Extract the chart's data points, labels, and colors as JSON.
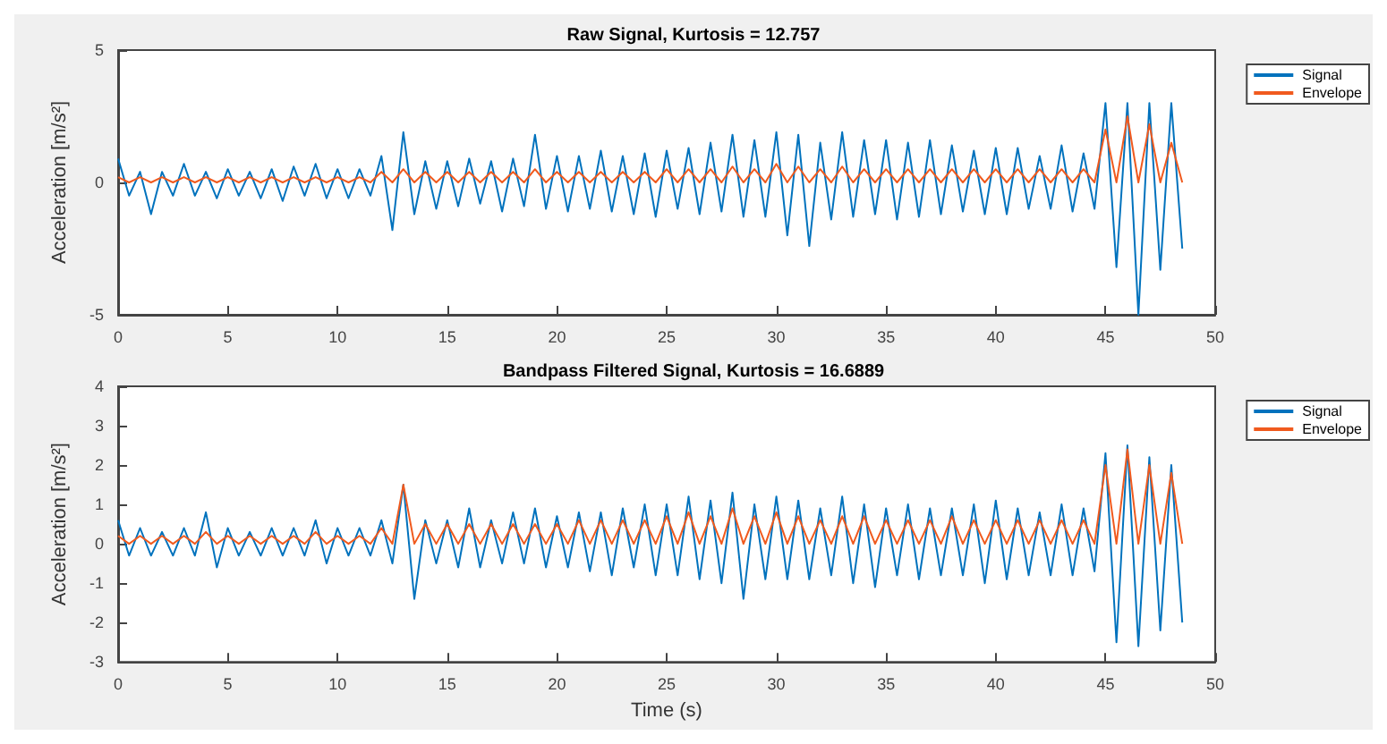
{
  "chart_data": [
    {
      "type": "line",
      "title": "Raw Signal, Kurtosis = 12.757",
      "ylabel": "Acceleration [m/s²]",
      "xlim": [
        0,
        50
      ],
      "xticks": [
        0,
        5,
        10,
        15,
        20,
        25,
        30,
        35,
        40,
        45,
        50
      ],
      "ylim": [
        -5,
        5
      ],
      "yticks": [
        -5,
        0,
        5
      ],
      "grid": false,
      "legend": "top right",
      "x": [
        0,
        0.5,
        1,
        1.5,
        2,
        2.5,
        3,
        3.5,
        4,
        4.5,
        5,
        5.5,
        6,
        6.5,
        7,
        7.5,
        8,
        8.5,
        9,
        9.5,
        10,
        10.5,
        11,
        11.5,
        12,
        12.5,
        13,
        13.5,
        14,
        14.5,
        15,
        15.5,
        16,
        16.5,
        17,
        17.5,
        18,
        18.5,
        19,
        19.5,
        20,
        20.5,
        21,
        21.5,
        22,
        22.5,
        23,
        23.5,
        24,
        24.5,
        25,
        25.5,
        26,
        26.5,
        27,
        27.5,
        28,
        28.5,
        29,
        29.5,
        30,
        30.5,
        31,
        31.5,
        32,
        32.5,
        33,
        33.5,
        34,
        34.5,
        35,
        35.5,
        36,
        36.5,
        37,
        37.5,
        38,
        38.5,
        39,
        39.5,
        40,
        40.5,
        41,
        41.5,
        42,
        42.5,
        43,
        43.5,
        44,
        44.5,
        45,
        45.5,
        46,
        46.5,
        47,
        47.5,
        48,
        48.5
      ],
      "series": [
        {
          "name": "Signal",
          "color": "#0072bd",
          "values": [
            0.9,
            -0.5,
            0.4,
            -1.2,
            0.4,
            -0.5,
            0.7,
            -0.5,
            0.4,
            -0.6,
            0.5,
            -0.5,
            0.4,
            -0.6,
            0.5,
            -0.7,
            0.6,
            -0.5,
            0.7,
            -0.6,
            0.5,
            -0.6,
            0.5,
            -0.5,
            1.0,
            -1.8,
            1.9,
            -1.2,
            0.8,
            -1.0,
            0.8,
            -0.9,
            0.9,
            -0.8,
            0.8,
            -1.1,
            0.9,
            -0.9,
            1.8,
            -1.0,
            1.0,
            -1.1,
            1.0,
            -1.0,
            1.2,
            -1.1,
            1.0,
            -1.2,
            1.1,
            -1.3,
            1.2,
            -1.0,
            1.3,
            -1.2,
            1.5,
            -1.1,
            1.8,
            -1.3,
            1.6,
            -1.3,
            1.9,
            -2.0,
            1.8,
            -2.4,
            1.5,
            -1.4,
            1.9,
            -1.3,
            1.6,
            -1.2,
            1.6,
            -1.4,
            1.5,
            -1.3,
            1.6,
            -1.2,
            1.4,
            -1.1,
            1.2,
            -1.2,
            1.3,
            -1.2,
            1.3,
            -1.0,
            1.0,
            -1.0,
            1.4,
            -1.1,
            1.1,
            -1.0,
            3.0,
            -3.2,
            3.0,
            -5.0,
            3.0,
            -3.3,
            3.0,
            -2.5
          ]
        },
        {
          "name": "Envelope",
          "color": "#f05a1e",
          "values": [
            0.2,
            0,
            0.2,
            0,
            0.2,
            0,
            0.2,
            0,
            0.2,
            0,
            0.2,
            0,
            0.2,
            0,
            0.2,
            0,
            0.2,
            0,
            0.2,
            0,
            0.2,
            0,
            0.2,
            0,
            0.4,
            0,
            0.5,
            0,
            0.4,
            0,
            0.4,
            0,
            0.4,
            0,
            0.4,
            0,
            0.4,
            0,
            0.5,
            0,
            0.4,
            0,
            0.4,
            0,
            0.4,
            0,
            0.4,
            0,
            0.4,
            0,
            0.5,
            0,
            0.5,
            0,
            0.5,
            0,
            0.6,
            0,
            0.5,
            0,
            0.7,
            0,
            0.6,
            0,
            0.5,
            0,
            0.6,
            0,
            0.5,
            0,
            0.5,
            0,
            0.5,
            0,
            0.5,
            0,
            0.5,
            0,
            0.5,
            0,
            0.5,
            0,
            0.5,
            0,
            0.5,
            0,
            0.5,
            0,
            0.5,
            0,
            2.0,
            0,
            2.5,
            0,
            2.2,
            0,
            1.5,
            0
          ]
        }
      ]
    },
    {
      "type": "line",
      "title": "Bandpass Filtered Signal, Kurtosis = 16.6889",
      "xlabel": "Time (s)",
      "ylabel": "Acceleration [m/s²]",
      "xlim": [
        0,
        50
      ],
      "xticks": [
        0,
        5,
        10,
        15,
        20,
        25,
        30,
        35,
        40,
        45,
        50
      ],
      "ylim": [
        -3,
        4
      ],
      "yticks": [
        -3,
        -2,
        -1,
        0,
        1,
        2,
        3,
        4
      ],
      "grid": false,
      "legend": "top right",
      "x": [
        0,
        0.5,
        1,
        1.5,
        2,
        2.5,
        3,
        3.5,
        4,
        4.5,
        5,
        5.5,
        6,
        6.5,
        7,
        7.5,
        8,
        8.5,
        9,
        9.5,
        10,
        10.5,
        11,
        11.5,
        12,
        12.5,
        13,
        13.5,
        14,
        14.5,
        15,
        15.5,
        16,
        16.5,
        17,
        17.5,
        18,
        18.5,
        19,
        19.5,
        20,
        20.5,
        21,
        21.5,
        22,
        22.5,
        23,
        23.5,
        24,
        24.5,
        25,
        25.5,
        26,
        26.5,
        27,
        27.5,
        28,
        28.5,
        29,
        29.5,
        30,
        30.5,
        31,
        31.5,
        32,
        32.5,
        33,
        33.5,
        34,
        34.5,
        35,
        35.5,
        36,
        36.5,
        37,
        37.5,
        38,
        38.5,
        39,
        39.5,
        40,
        40.5,
        41,
        41.5,
        42,
        42.5,
        43,
        43.5,
        44,
        44.5,
        45,
        45.5,
        46,
        46.5,
        47,
        47.5,
        48,
        48.5
      ],
      "series": [
        {
          "name": "Signal",
          "color": "#0072bd",
          "values": [
            0.6,
            -0.3,
            0.4,
            -0.3,
            0.3,
            -0.3,
            0.4,
            -0.3,
            0.8,
            -0.6,
            0.4,
            -0.3,
            0.3,
            -0.3,
            0.4,
            -0.3,
            0.4,
            -0.3,
            0.6,
            -0.5,
            0.4,
            -0.3,
            0.4,
            -0.3,
            0.6,
            -0.5,
            1.5,
            -1.4,
            0.6,
            -0.5,
            0.6,
            -0.6,
            0.9,
            -0.6,
            0.6,
            -0.5,
            0.8,
            -0.5,
            0.9,
            -0.6,
            0.7,
            -0.6,
            0.8,
            -0.7,
            0.8,
            -0.8,
            0.9,
            -0.6,
            1.0,
            -0.8,
            1.0,
            -0.8,
            1.2,
            -0.9,
            1.1,
            -1.0,
            1.3,
            -1.4,
            1.0,
            -0.9,
            1.2,
            -0.9,
            1.1,
            -0.9,
            0.9,
            -0.8,
            1.2,
            -1.0,
            1.0,
            -1.1,
            0.9,
            -0.8,
            1.0,
            -0.9,
            0.9,
            -0.8,
            0.9,
            -0.8,
            1.0,
            -1.0,
            1.1,
            -0.9,
            0.9,
            -0.8,
            0.8,
            -0.8,
            1.0,
            -0.8,
            0.9,
            -0.7,
            2.3,
            -2.5,
            2.5,
            -2.6,
            2.2,
            -2.2,
            2.0,
            -2.0
          ]
        },
        {
          "name": "Envelope",
          "color": "#f05a1e",
          "values": [
            0.2,
            0,
            0.2,
            0,
            0.2,
            0,
            0.2,
            0,
            0.3,
            0,
            0.2,
            0,
            0.2,
            0,
            0.2,
            0,
            0.2,
            0,
            0.3,
            0,
            0.2,
            0,
            0.2,
            0,
            0.4,
            0,
            1.5,
            0,
            0.5,
            0,
            0.5,
            0,
            0.5,
            0,
            0.5,
            0,
            0.5,
            0,
            0.5,
            0,
            0.5,
            0,
            0.6,
            0,
            0.6,
            0,
            0.6,
            0,
            0.6,
            0,
            0.7,
            0,
            0.8,
            0,
            0.7,
            0,
            0.9,
            0,
            0.7,
            0,
            0.8,
            0,
            0.7,
            0,
            0.6,
            0,
            0.7,
            0,
            0.7,
            0,
            0.6,
            0,
            0.6,
            0,
            0.6,
            0,
            0.7,
            0,
            0.6,
            0,
            0.6,
            0,
            0.6,
            0,
            0.6,
            0,
            0.6,
            0,
            0.6,
            0,
            2.0,
            0,
            2.4,
            0,
            2.0,
            0,
            1.8,
            0
          ]
        }
      ]
    }
  ]
}
